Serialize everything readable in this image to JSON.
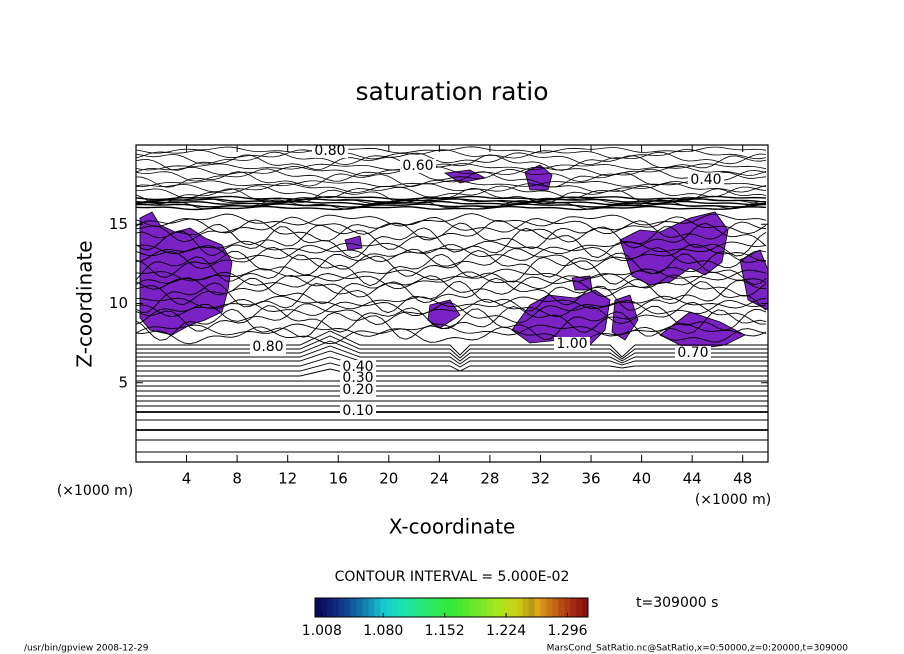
{
  "chart_data": {
    "type": "contour",
    "title": "saturation ratio",
    "xlabel": "X-coordinate",
    "ylabel": "Z-coordinate",
    "x_unit": "(×1000 m)",
    "y_unit": "(×1000 m)",
    "xlim": [
      0,
      50
    ],
    "ylim": [
      0,
      20
    ],
    "xticks": [
      4,
      8,
      12,
      16,
      20,
      24,
      28,
      32,
      36,
      40,
      44,
      48
    ],
    "yticks": [
      5,
      10,
      15
    ],
    "shade_color": "#7b22c4",
    "contour_labels": [
      {
        "value": 0.1,
        "label": "0.10"
      },
      {
        "value": 0.2,
        "label": "0.20"
      },
      {
        "value": 0.3,
        "label": "0.30"
      },
      {
        "value": 0.4,
        "label": "0.40"
      },
      {
        "value": 0.8,
        "label": "0.80"
      },
      {
        "value": 0.6,
        "label": "0.60"
      },
      {
        "value": 0.4,
        "label": "0.40"
      },
      {
        "value": 1.0,
        "label": "1.00"
      },
      {
        "value": 0.7,
        "label": "0.70"
      },
      {
        "value": 0.8,
        "label": "0.80"
      }
    ],
    "contour_interval_label": "CONTOUR INTERVAL = 5.000E-02",
    "time_label": "t=309000 s",
    "colorbar": {
      "lim": [
        1.0,
        1.32
      ],
      "ticks": [
        1.008,
        {
          "value": 1.08,
          "label": "1.080"
        },
        1.152,
        1.224,
        1.296
      ]
    },
    "footer_left": "/usr/bin/gpview  2008-12-29",
    "footer_right": "MarsCond_SatRatio.nc@SatRatio,x=0:50000,z=0:20000,t=309000"
  }
}
